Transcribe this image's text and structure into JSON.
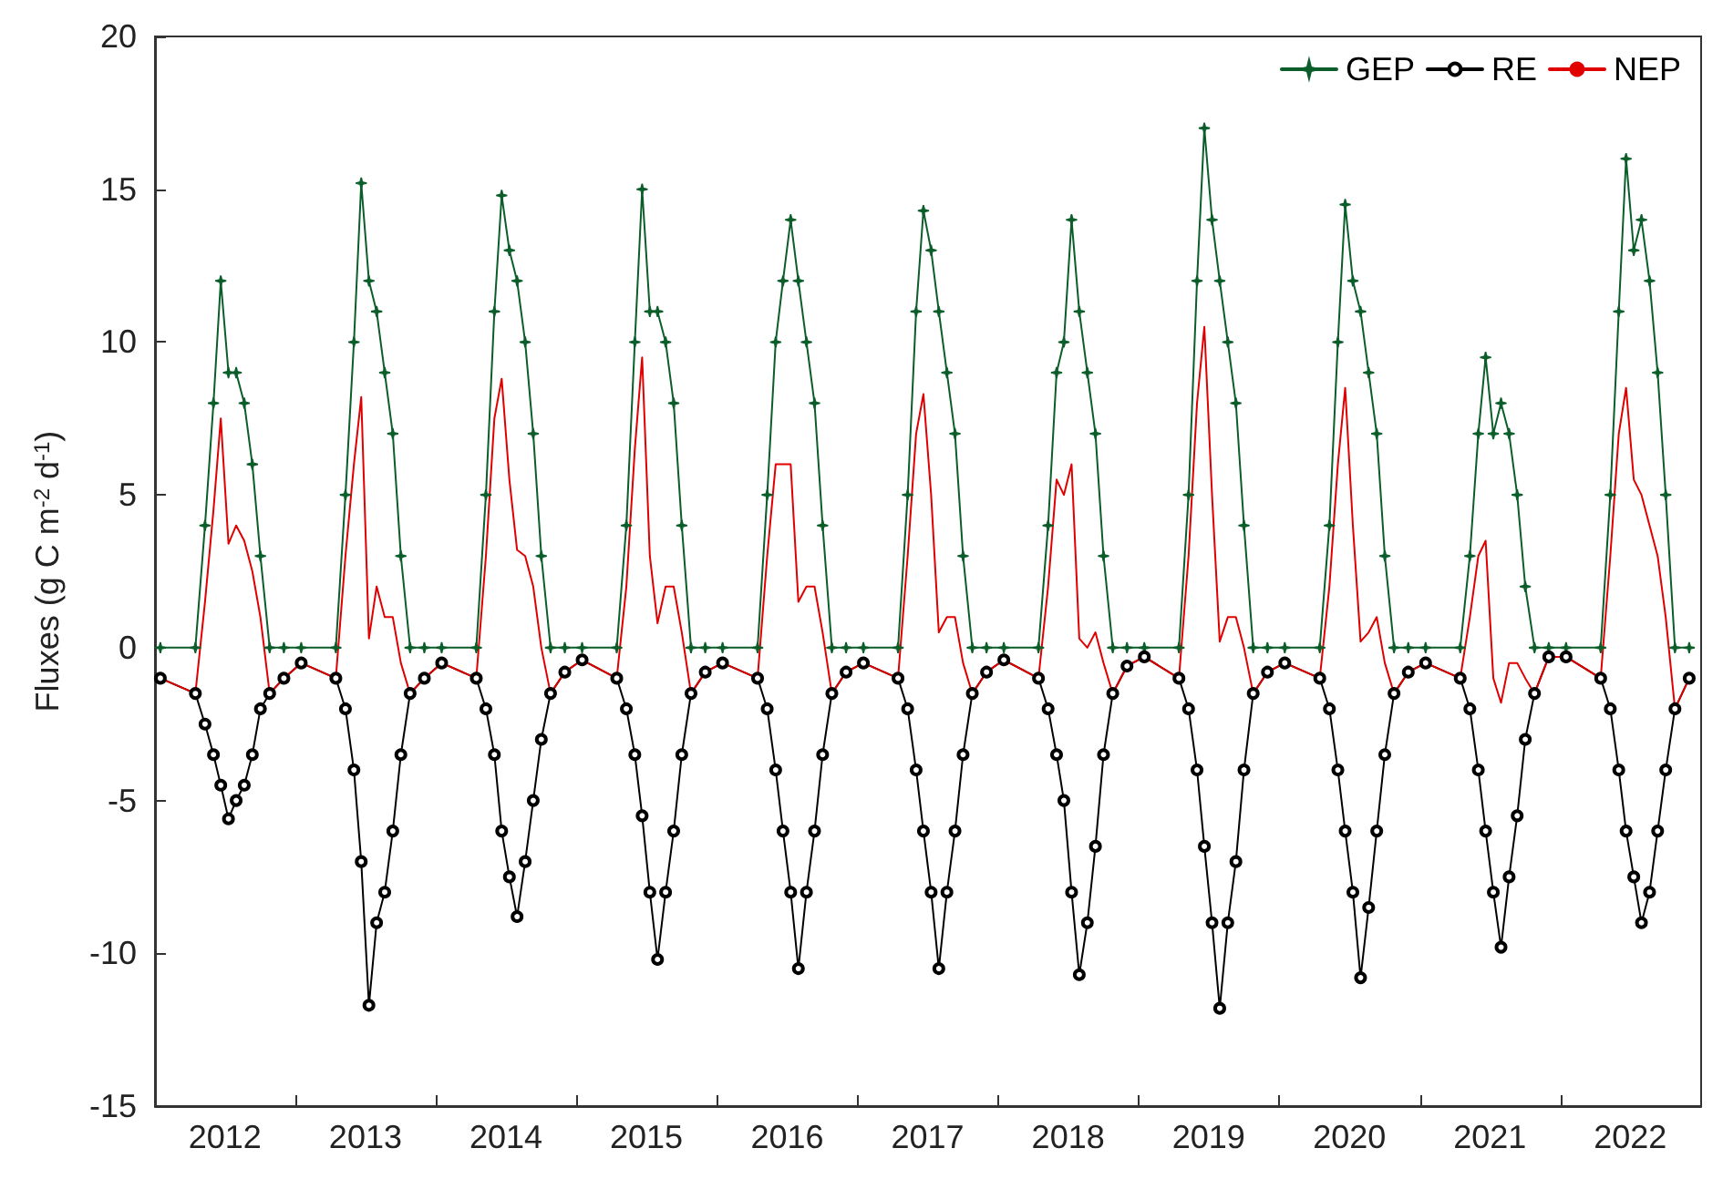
{
  "chart_data": {
    "type": "line",
    "ylabel": "Fluxes (g C m$^{-2}$ d$^{-1}$)",
    "x": [
      "2012-01-15",
      "2012-04-15",
      "2012-05-10",
      "2012-06-01",
      "2012-06-20",
      "2012-07-10",
      "2012-07-30",
      "2012-08-20",
      "2012-09-10",
      "2012-10-01",
      "2012-10-25",
      "2012-12-01",
      "2013-01-15",
      "2013-04-15",
      "2013-05-10",
      "2013-06-01",
      "2013-06-20",
      "2013-07-10",
      "2013-07-30",
      "2013-08-20",
      "2013-09-10",
      "2013-10-01",
      "2013-10-25",
      "2013-12-01",
      "2014-01-15",
      "2014-04-15",
      "2014-05-10",
      "2014-06-01",
      "2014-06-20",
      "2014-07-10",
      "2014-07-30",
      "2014-08-20",
      "2014-09-10",
      "2014-10-01",
      "2014-10-25",
      "2014-12-01",
      "2015-01-15",
      "2015-04-15",
      "2015-05-10",
      "2015-06-01",
      "2015-06-20",
      "2015-07-10",
      "2015-07-30",
      "2015-08-20",
      "2015-09-10",
      "2015-10-01",
      "2015-10-25",
      "2015-12-01",
      "2016-01-15",
      "2016-04-15",
      "2016-05-10",
      "2016-06-01",
      "2016-06-20",
      "2016-07-10",
      "2016-07-30",
      "2016-08-20",
      "2016-09-10",
      "2016-10-01",
      "2016-10-25",
      "2016-12-01",
      "2017-01-15",
      "2017-04-15",
      "2017-05-10",
      "2017-06-01",
      "2017-06-20",
      "2017-07-10",
      "2017-07-30",
      "2017-08-20",
      "2017-09-10",
      "2017-10-01",
      "2017-10-25",
      "2017-12-01",
      "2018-01-15",
      "2018-04-15",
      "2018-05-10",
      "2018-06-01",
      "2018-06-20",
      "2018-07-10",
      "2018-07-30",
      "2018-08-20",
      "2018-09-10",
      "2018-10-01",
      "2018-10-25",
      "2018-12-01",
      "2019-01-15",
      "2019-04-15",
      "2019-05-10",
      "2019-06-01",
      "2019-06-20",
      "2019-07-10",
      "2019-07-30",
      "2019-08-20",
      "2019-09-10",
      "2019-10-01",
      "2019-10-25",
      "2019-12-01",
      "2020-01-15",
      "2020-04-15",
      "2020-05-10",
      "2020-06-01",
      "2020-06-20",
      "2020-07-10",
      "2020-07-30",
      "2020-08-20",
      "2020-09-10",
      "2020-10-01",
      "2020-10-25",
      "2020-12-01",
      "2021-01-15",
      "2021-04-15",
      "2021-05-10",
      "2021-06-01",
      "2021-06-20",
      "2021-07-10",
      "2021-07-30",
      "2021-08-20",
      "2021-09-10",
      "2021-10-01",
      "2021-10-25",
      "2021-12-01",
      "2022-01-15",
      "2022-04-15",
      "2022-05-10",
      "2022-06-01",
      "2022-06-20",
      "2022-07-10",
      "2022-07-30",
      "2022-08-20",
      "2022-09-10",
      "2022-10-01",
      "2022-10-25",
      "2022-12-01"
    ],
    "series": [
      {
        "name": "GEP",
        "color": "#0b5e2a",
        "marker": "star",
        "values": [
          0,
          0,
          4,
          8,
          12,
          9,
          9,
          8,
          6,
          3,
          0,
          0,
          0,
          0,
          5,
          10,
          15.2,
          12,
          11,
          9,
          7,
          3,
          0,
          0,
          0,
          0,
          5,
          11,
          14.8,
          13,
          12,
          10,
          7,
          3,
          0,
          0,
          0,
          0,
          4,
          10,
          15,
          11,
          11,
          10,
          8,
          4,
          0,
          0,
          0,
          0,
          5,
          10,
          12,
          14,
          12,
          10,
          8,
          4,
          0,
          0,
          0,
          0,
          5,
          11,
          14.3,
          13,
          11,
          9,
          7,
          3,
          0,
          0,
          0,
          0,
          4,
          9,
          10,
          14,
          11,
          9,
          7,
          3,
          0,
          0,
          0,
          0,
          5,
          12,
          17,
          14,
          12,
          10,
          8,
          4,
          0,
          0,
          0,
          0,
          4,
          10,
          14.5,
          12,
          11,
          9,
          7,
          3,
          0,
          0,
          0,
          0,
          3,
          7,
          9.5,
          7,
          8,
          7,
          5,
          2,
          0,
          0,
          0,
          0,
          5,
          11,
          16,
          13,
          14,
          12,
          9,
          5,
          0,
          0
        ]
      },
      {
        "name": "RE",
        "color": "#000000",
        "marker": "circle",
        "values": [
          -1,
          -1.5,
          -2.5,
          -3.5,
          -4.5,
          -5.6,
          -5,
          -4.5,
          -3.5,
          -2,
          -1.5,
          -1,
          -0.5,
          -1,
          -2,
          -4,
          -7,
          -11.7,
          -9,
          -8,
          -6,
          -3.5,
          -1.5,
          -1,
          -0.5,
          -1,
          -2,
          -3.5,
          -6,
          -7.5,
          -8.8,
          -7,
          -5,
          -3,
          -1.5,
          -0.8,
          -0.4,
          -1,
          -2,
          -3.5,
          -5.5,
          -8,
          -10.2,
          -8,
          -6,
          -3.5,
          -1.5,
          -0.8,
          -0.5,
          -1,
          -2,
          -4,
          -6,
          -8,
          -10.5,
          -8,
          -6,
          -3.5,
          -1.5,
          -0.8,
          -0.5,
          -1,
          -2,
          -4,
          -6,
          -8,
          -10.5,
          -8,
          -6,
          -3.5,
          -1.5,
          -0.8,
          -0.4,
          -1,
          -2,
          -3.5,
          -5,
          -8,
          -10.7,
          -9,
          -6.5,
          -3.5,
          -1.5,
          -0.6,
          -0.3,
          -1,
          -2,
          -4,
          -6.5,
          -9,
          -11.8,
          -9,
          -7,
          -4,
          -1.5,
          -0.8,
          -0.5,
          -1,
          -2,
          -4,
          -6,
          -8,
          -10.8,
          -8.5,
          -6,
          -3.5,
          -1.5,
          -0.8,
          -0.5,
          -1,
          -2,
          -4,
          -6,
          -8,
          -9.8,
          -7.5,
          -5.5,
          -3,
          -1.5,
          -0.3,
          -0.3,
          -1,
          -2,
          -4,
          -6,
          -7.5,
          -9,
          -8,
          -6,
          -4,
          -2,
          -1
        ]
      },
      {
        "name": "NEP",
        "color": "#e00000",
        "marker": "none",
        "values": [
          -1,
          -1.5,
          1.5,
          4.5,
          7.5,
          3.4,
          4,
          3.5,
          2.5,
          1,
          -1.5,
          -1,
          -0.5,
          -1,
          3,
          6,
          8.2,
          0.3,
          2,
          1,
          1,
          -0.5,
          -1.5,
          -1,
          -0.5,
          -1,
          3,
          7.5,
          8.8,
          5.5,
          3.2,
          3,
          2,
          0,
          -1.5,
          -0.8,
          -0.4,
          -1,
          2,
          6.5,
          9.5,
          3,
          0.8,
          2,
          2,
          0.5,
          -1.5,
          -0.8,
          -0.5,
          -1,
          3,
          6,
          6,
          6,
          1.5,
          2,
          2,
          0.5,
          -1.5,
          -0.8,
          -0.5,
          -1,
          3,
          7,
          8.3,
          5,
          0.5,
          1,
          1,
          -0.5,
          -1.5,
          -0.8,
          -0.4,
          -1,
          2,
          5.5,
          5,
          6,
          0.3,
          0,
          0.5,
          -0.5,
          -1.5,
          -0.6,
          -0.3,
          -1,
          3,
          8,
          10.5,
          5,
          0.2,
          1,
          1,
          0,
          -1.5,
          -0.8,
          -0.5,
          -1,
          2,
          6,
          8.5,
          4,
          0.2,
          0.5,
          1,
          -0.5,
          -1.5,
          -0.8,
          -0.5,
          -1,
          1,
          3,
          3.5,
          -1,
          -1.8,
          -0.5,
          -0.5,
          -1,
          -1.5,
          -0.3,
          -0.3,
          -1,
          3,
          7,
          8.5,
          5.5,
          5,
          4,
          3,
          1,
          -2,
          -1
        ]
      }
    ],
    "xlim": [
      "2012-01-01",
      "2023-01-01"
    ],
    "xticks": [
      {
        "value": "2012-07-01",
        "label": "2012"
      },
      {
        "value": "2013-01-01",
        "label": null
      },
      {
        "value": "2013-07-01",
        "label": "2013"
      },
      {
        "value": "2014-01-01",
        "label": null
      },
      {
        "value": "2014-07-01",
        "label": "2014"
      },
      {
        "value": "2015-01-01",
        "label": null
      },
      {
        "value": "2015-07-01",
        "label": "2015"
      },
      {
        "value": "2016-01-01",
        "label": null
      },
      {
        "value": "2016-07-01",
        "label": "2016"
      },
      {
        "value": "2017-01-01",
        "label": null
      },
      {
        "value": "2017-07-01",
        "label": "2017"
      },
      {
        "value": "2018-01-01",
        "label": null
      },
      {
        "value": "2018-07-01",
        "label": "2018"
      },
      {
        "value": "2019-01-01",
        "label": null
      },
      {
        "value": "2019-07-01",
        "label": "2019"
      },
      {
        "value": "2020-01-01",
        "label": null
      },
      {
        "value": "2020-07-01",
        "label": "2020"
      },
      {
        "value": "2021-01-01",
        "label": null
      },
      {
        "value": "2021-07-01",
        "label": "2021"
      },
      {
        "value": "2022-01-01",
        "label": null
      },
      {
        "value": "2022-07-01",
        "label": "2022"
      }
    ],
    "ylim": [
      -15,
      20
    ],
    "yticks": [
      -15,
      -10,
      -5,
      0,
      5,
      10,
      15,
      20
    ],
    "legend": "top right",
    "grid": false,
    "line_style": "solid"
  }
}
